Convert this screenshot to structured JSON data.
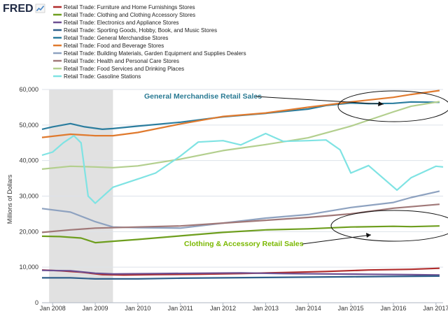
{
  "brand": {
    "name": "FRED",
    "logo_icon": "fred-trend-icon"
  },
  "colors": {
    "brand": "#1f2a44",
    "recession": "#e1e1e1",
    "grid": "#dde2ea",
    "axis_text": "#333333",
    "ann_gm": "#2a7a93",
    "ann_ca": "#7ab800"
  },
  "chart_data": {
    "type": "line",
    "ylabel": "Millions of Dollars",
    "xlabel": "",
    "ylim": [
      0,
      60000
    ],
    "xlim": [
      "2007-10",
      "2017-03"
    ],
    "y_ticks": [
      {
        "value": 0,
        "label": "0"
      },
      {
        "value": 10000,
        "label": "10,000"
      },
      {
        "value": 20000,
        "label": "20,000"
      },
      {
        "value": 30000,
        "label": "30,000"
      },
      {
        "value": 40000,
        "label": "40,000"
      },
      {
        "value": 50000,
        "label": "50,000"
      },
      {
        "value": 60000,
        "label": "60,000"
      }
    ],
    "x_ticks": [
      {
        "value": "2008-01",
        "label": "Jan 2008"
      },
      {
        "value": "2009-01",
        "label": "Jan 2009"
      },
      {
        "value": "2010-01",
        "label": "Jan 2010"
      },
      {
        "value": "2011-01",
        "label": "Jan 2011"
      },
      {
        "value": "2012-01",
        "label": "Jan 2012"
      },
      {
        "value": "2013-01",
        "label": "Jan 2013"
      },
      {
        "value": "2014-01",
        "label": "Jan 2014"
      },
      {
        "value": "2015-01",
        "label": "Jan 2015"
      },
      {
        "value": "2016-01",
        "label": "Jan 2016"
      },
      {
        "value": "2017-01",
        "label": "Jan 2017"
      }
    ],
    "recession_bands": [
      {
        "start": "2007-12",
        "end": "2009-06"
      }
    ],
    "grid": true,
    "legend_position": "top-left",
    "series": [
      {
        "name": "Retail Trade: Furniture and Home Furnishings Stores",
        "color": "#b02c2c",
        "x": [
          "2007-10",
          "2008-03",
          "2008-09",
          "2009-03",
          "2009-09",
          "2010-06",
          "2011-06",
          "2012-06",
          "2013-06",
          "2014-06",
          "2015-06",
          "2016-06",
          "2017-02"
        ],
        "y": [
          9200,
          9000,
          8600,
          7900,
          7800,
          7900,
          8000,
          8200,
          8500,
          8800,
          9200,
          9400,
          9700
        ]
      },
      {
        "name": "Retail Trade: Clothing and Clothing Accessory Stores",
        "color": "#6e9e1e",
        "x": [
          "2007-10",
          "2008-03",
          "2008-09",
          "2009-01",
          "2009-06",
          "2010-01",
          "2011-01",
          "2012-01",
          "2013-01",
          "2014-01",
          "2015-01",
          "2016-01",
          "2016-06",
          "2017-02"
        ],
        "y": [
          18700,
          18600,
          18200,
          16900,
          17300,
          17800,
          18800,
          19800,
          20500,
          20800,
          21300,
          21500,
          21400,
          21600
        ]
      },
      {
        "name": "Retail Trade: Electronics and Appliance Stores",
        "color": "#6d4f92",
        "x": [
          "2007-10",
          "2008-06",
          "2009-01",
          "2009-06",
          "2010-06",
          "2011-06",
          "2012-06",
          "2013-06",
          "2014-06",
          "2015-06",
          "2016-06",
          "2017-02"
        ],
        "y": [
          9100,
          9000,
          8300,
          8100,
          8200,
          8300,
          8400,
          8200,
          8100,
          8000,
          7900,
          7800
        ]
      },
      {
        "name": "Retail Trade: Sporting Goods, Hobby, Book, and Music Stores",
        "color": "#2f5f8a",
        "x": [
          "2007-10",
          "2008-06",
          "2009-01",
          "2010-01",
          "2011-01",
          "2012-01",
          "2013-01",
          "2014-01",
          "2015-01",
          "2016-01",
          "2017-02"
        ],
        "y": [
          7000,
          7000,
          6700,
          6700,
          6900,
          7000,
          7100,
          7200,
          7300,
          7400,
          7500
        ]
      },
      {
        "name": "Retail Trade: General Merchandise Stores",
        "color": "#2b7d9e",
        "x": [
          "2007-10",
          "2008-01",
          "2008-06",
          "2008-10",
          "2009-03",
          "2009-06",
          "2010-01",
          "2011-01",
          "2012-01",
          "2013-01",
          "2014-01",
          "2014-06",
          "2015-01",
          "2015-06",
          "2016-01",
          "2016-06",
          "2017-02"
        ],
        "y": [
          48800,
          49500,
          50400,
          49500,
          48800,
          49000,
          49700,
          50800,
          52300,
          53300,
          54500,
          55500,
          56200,
          56000,
          56100,
          56500,
          56400
        ]
      },
      {
        "name": "Retail Trade: Food and Beverage Stores",
        "color": "#e07a2e",
        "x": [
          "2007-10",
          "2008-06",
          "2009-01",
          "2009-06",
          "2010-01",
          "2011-01",
          "2012-01",
          "2013-01",
          "2014-01",
          "2015-01",
          "2016-01",
          "2016-06",
          "2017-02"
        ],
        "y": [
          46500,
          47400,
          47000,
          47000,
          47900,
          50300,
          52400,
          53400,
          55000,
          56500,
          57800,
          58600,
          59700
        ]
      },
      {
        "name": "Retail Trade: Building Materials, Garden Equipment and Supplies Dealers",
        "color": "#8ea2c0",
        "x": [
          "2007-10",
          "2008-06",
          "2009-01",
          "2009-06",
          "2010-01",
          "2011-01",
          "2012-01",
          "2013-01",
          "2014-01",
          "2015-01",
          "2016-01",
          "2016-06",
          "2017-02"
        ],
        "y": [
          26500,
          25500,
          22800,
          21300,
          21100,
          21000,
          22400,
          23800,
          24800,
          26800,
          28200,
          29600,
          31400
        ]
      },
      {
        "name": "Retail Trade: Health and Personal Care Stores",
        "color": "#a07878",
        "x": [
          "2007-10",
          "2008-06",
          "2009-01",
          "2010-01",
          "2011-01",
          "2012-01",
          "2013-01",
          "2014-01",
          "2015-01",
          "2016-01",
          "2017-02"
        ],
        "y": [
          19800,
          20500,
          21000,
          21300,
          21600,
          22400,
          23200,
          24000,
          25000,
          26600,
          27700
        ]
      },
      {
        "name": "Retail Trade: Food Services and Drinking Places",
        "color": "#b3cf8e",
        "x": [
          "2007-10",
          "2008-06",
          "2009-01",
          "2009-06",
          "2010-01",
          "2011-01",
          "2012-01",
          "2013-01",
          "2014-01",
          "2015-01",
          "2016-01",
          "2016-06",
          "2017-02"
        ],
        "y": [
          37600,
          38400,
          38200,
          38000,
          38500,
          40400,
          42800,
          44500,
          46400,
          49700,
          53700,
          55300,
          56600
        ]
      },
      {
        "name": "Retail Trade: Gasoline Stations",
        "color": "#7fe3e3",
        "x": [
          "2007-10",
          "2008-01",
          "2008-04",
          "2008-07",
          "2008-09",
          "2008-11",
          "2009-01",
          "2009-06",
          "2010-01",
          "2010-06",
          "2011-01",
          "2011-06",
          "2012-01",
          "2012-06",
          "2013-01",
          "2013-06",
          "2014-01",
          "2014-06",
          "2014-10",
          "2015-01",
          "2015-06",
          "2016-02",
          "2016-06",
          "2017-01",
          "2017-03"
        ],
        "y": [
          41500,
          42400,
          45000,
          47000,
          45000,
          30000,
          28000,
          32500,
          34800,
          36500,
          41300,
          45200,
          45600,
          44400,
          47600,
          45400,
          45600,
          45800,
          43000,
          36500,
          38600,
          31700,
          35200,
          38400,
          38200
        ]
      }
    ],
    "annotations": [
      {
        "text": "General Merchandise Retail Sales",
        "color": "#2a7a93"
      },
      {
        "text": "Clothing & Accessory Retail Sales",
        "color": "#7ab800"
      }
    ]
  }
}
